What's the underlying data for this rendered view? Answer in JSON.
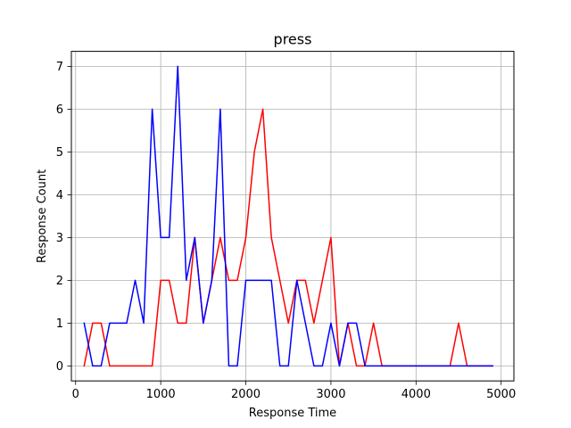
{
  "chart_data": {
    "type": "line",
    "title": "press",
    "xlabel": "Response Time",
    "ylabel": "Response Count",
    "xlim": [
      -50,
      5150
    ],
    "ylim": [
      -0.35,
      7.35
    ],
    "xticks": [
      0,
      1000,
      2000,
      3000,
      4000,
      5000
    ],
    "yticks": [
      0,
      1,
      2,
      3,
      4,
      5,
      6,
      7
    ],
    "grid": true,
    "legend": "none",
    "x": [
      100,
      200,
      300,
      400,
      500,
      600,
      700,
      800,
      900,
      1000,
      1100,
      1200,
      1300,
      1400,
      1500,
      1600,
      1700,
      1800,
      1900,
      2000,
      2100,
      2200,
      2300,
      2400,
      2500,
      2600,
      2700,
      2800,
      2900,
      3000,
      3100,
      3200,
      3300,
      3400,
      3500,
      3600,
      3700,
      3800,
      3900,
      4000,
      4100,
      4200,
      4300,
      4400,
      4500,
      4600,
      4700,
      4800,
      4900
    ],
    "series": [
      {
        "color": "#ff0000",
        "values": [
          0,
          1,
          1,
          0,
          0,
          0,
          0,
          0,
          0,
          2,
          2,
          1,
          1,
          3,
          1,
          2,
          3,
          2,
          2,
          3,
          5,
          6,
          3,
          2,
          1,
          2,
          2,
          1,
          2,
          3,
          0,
          1,
          0,
          0,
          1,
          0,
          0,
          0,
          0,
          0,
          0,
          0,
          0,
          0,
          1,
          0,
          0,
          0,
          0
        ]
      },
      {
        "color": "#0000ff",
        "values": [
          1,
          0,
          0,
          1,
          1,
          1,
          2,
          1,
          6,
          3,
          3,
          7,
          2,
          3,
          1,
          2,
          6,
          0,
          0,
          2,
          2,
          2,
          2,
          0,
          0,
          2,
          1,
          0,
          0,
          1,
          0,
          1,
          1,
          0,
          0,
          0,
          0,
          0,
          0,
          0,
          0,
          0,
          0,
          0,
          0,
          0,
          0,
          0,
          0
        ]
      }
    ]
  }
}
